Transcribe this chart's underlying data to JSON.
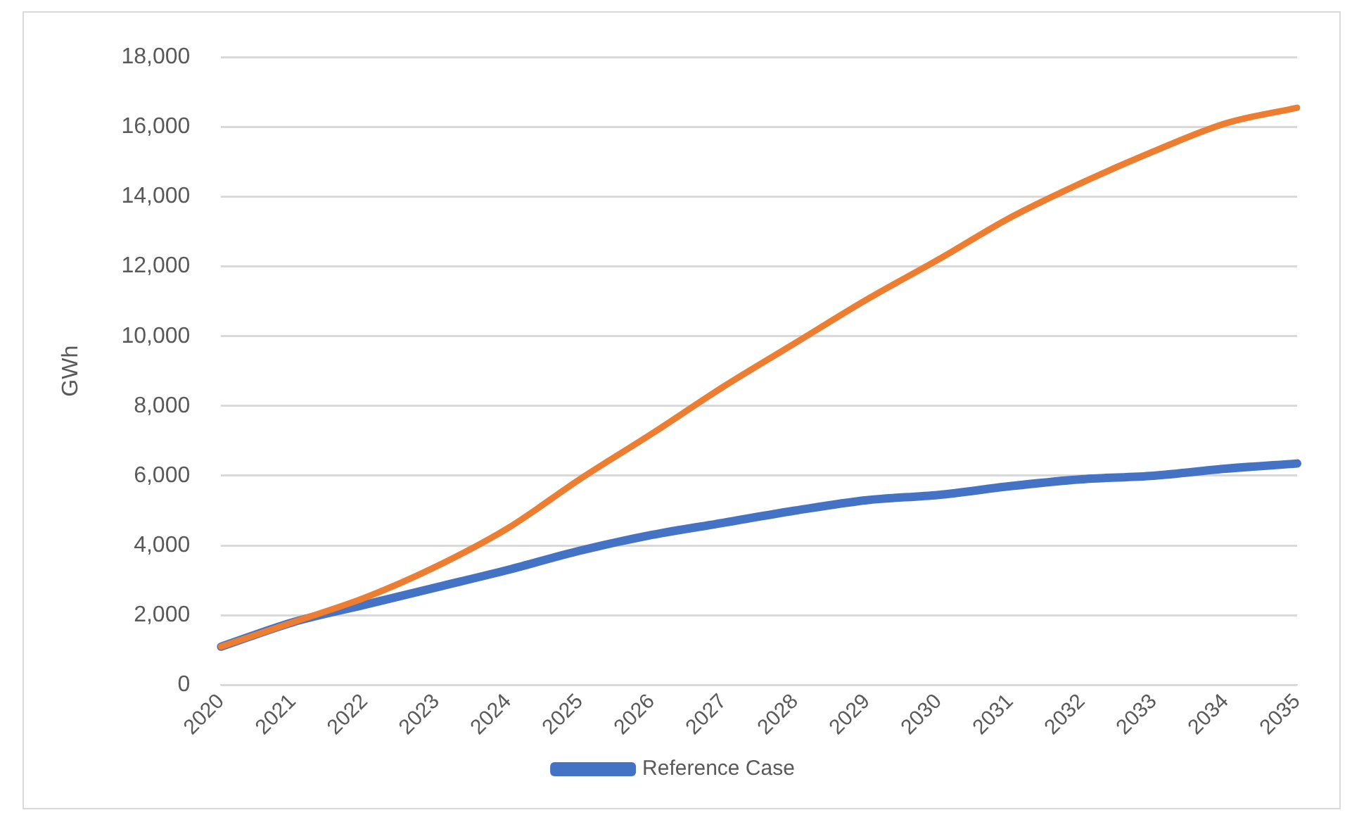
{
  "chart_data": {
    "type": "line",
    "ylabel": "GWh",
    "categories": [
      "2020",
      "2021",
      "2022",
      "2023",
      "2024",
      "2025",
      "2026",
      "2027",
      "2028",
      "2029",
      "2030",
      "2031",
      "2032",
      "2033",
      "2034",
      "2035"
    ],
    "series": [
      {
        "name": "Reference Case",
        "color": "#4472c4",
        "values": [
          1100,
          1800,
          2300,
          2800,
          3300,
          3850,
          4300,
          4650,
          5000,
          5300,
          5450,
          5700,
          5900,
          6000,
          6200,
          6350
        ]
      },
      {
        "color": "#ed7d31",
        "values": [
          1100,
          1800,
          2500,
          3400,
          4500,
          5900,
          7200,
          8550,
          9800,
          11050,
          12200,
          13400,
          14400,
          15300,
          16100,
          16550
        ]
      }
    ],
    "ylim": [
      0,
      18000
    ],
    "yticks": [
      0,
      {
        "value": 2000,
        "label": "2,000"
      },
      {
        "value": 4000,
        "label": "4,000"
      },
      {
        "value": 6000,
        "label": "6,000"
      },
      {
        "value": 8000,
        "label": "8,000"
      },
      {
        "value": 10000,
        "label": "10,000"
      },
      {
        "value": 12000,
        "label": "12,000"
      },
      {
        "value": 14000,
        "label": "14,000"
      },
      {
        "value": 16000,
        "label": "16,000"
      },
      {
        "value": 18000,
        "label": "18,000"
      }
    ],
    "grid": "y",
    "legend": "bottom",
    "marker": "none",
    "line_style": "solid"
  }
}
